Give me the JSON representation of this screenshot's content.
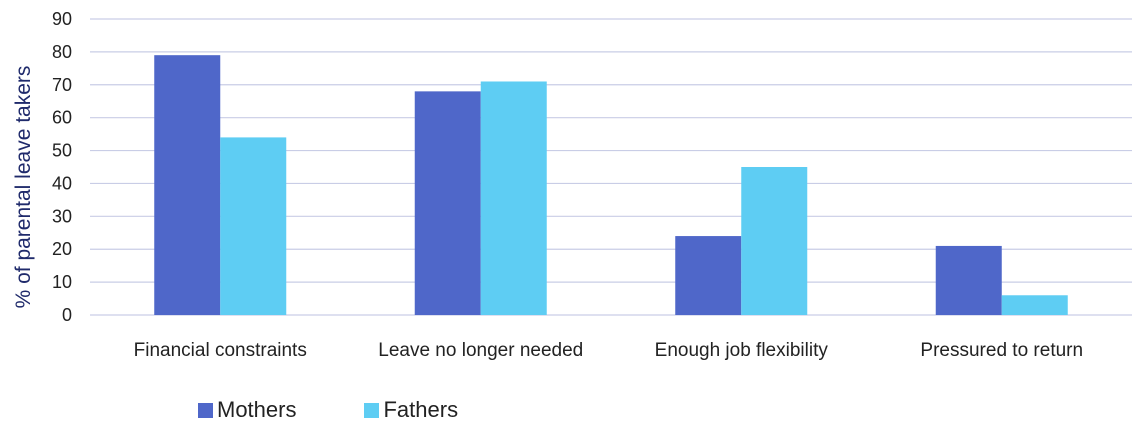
{
  "chart_data": {
    "type": "bar",
    "title": "",
    "xlabel": "",
    "ylabel": "% of parental leave takers",
    "ylim": [
      0,
      90
    ],
    "yticks": [
      0,
      10,
      20,
      30,
      40,
      50,
      60,
      70,
      80,
      90
    ],
    "grid": true,
    "legend_position": "bottom-left",
    "categories": [
      "Financial constraints",
      "Leave no longer needed",
      "Enough job flexibility",
      "Pressured to return"
    ],
    "series": [
      {
        "name": "Mothers",
        "color": "#4f67c9",
        "values": [
          79,
          68,
          24,
          21
        ]
      },
      {
        "name": "Fathers",
        "color": "#5ecdf3",
        "values": [
          54,
          71,
          45,
          6
        ]
      }
    ]
  }
}
